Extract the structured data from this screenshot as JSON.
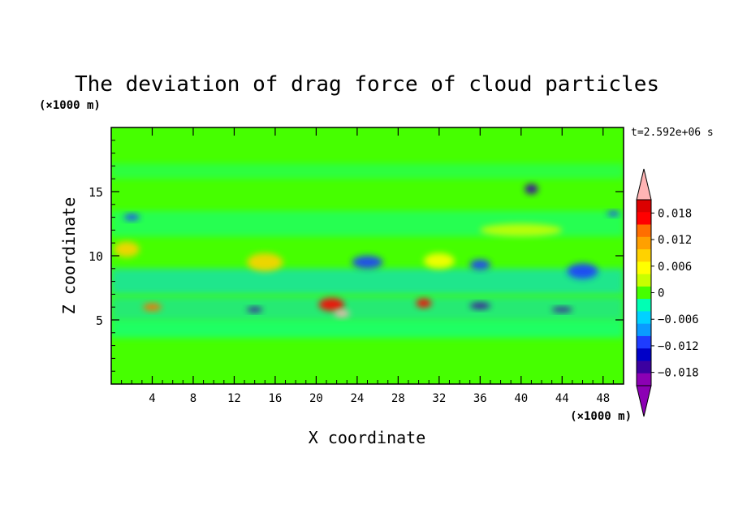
{
  "chart_data": {
    "type": "heatmap",
    "title": "The deviation of drag force of cloud particles",
    "xlabel": "X coordinate",
    "ylabel": "Z coordinate",
    "x_unit": "(×1000 m)",
    "y_unit": "(×1000 m)",
    "time_label": "t=2.592e+06 s",
    "xlim": [
      0,
      50
    ],
    "ylim": [
      0,
      20
    ],
    "x_ticks": [
      4,
      8,
      12,
      16,
      20,
      24,
      28,
      32,
      36,
      40,
      44,
      48
    ],
    "y_ticks": [
      5,
      10,
      15
    ],
    "colorbar": {
      "range": [
        -0.021,
        0.021
      ],
      "tick_values": [
        0.018,
        0.012,
        0.006,
        0,
        -0.006,
        -0.012,
        -0.018
      ],
      "tick_labels": [
        "0.018",
        "0.012",
        "0.006",
        "0",
        "−0.006",
        "−0.012",
        "−0.018"
      ],
      "colors": [
        "#8c00b4",
        "#3c00a0",
        "#0000c8",
        "#1e3cff",
        "#0a9bff",
        "#00d2ff",
        "#00ffb4",
        "#46ff00",
        "#c8ff00",
        "#ffff00",
        "#ffd200",
        "#ffa000",
        "#ff6e00",
        "#ff0000",
        "#dc0000"
      ],
      "over_color": "#ffb4b4",
      "under_color": "#8c00b4"
    },
    "field": {
      "background_value": 0,
      "note": "approximate features read from the image",
      "features": [
        {
          "x": 1.5,
          "z": 10.5,
          "w": 2.5,
          "h": 1.2,
          "value": 0.007
        },
        {
          "x": 15,
          "z": 9.5,
          "w": 3.5,
          "h": 1.4,
          "value": 0.007
        },
        {
          "x": 32,
          "z": 9.6,
          "w": 3,
          "h": 1.2,
          "value": 0.006
        },
        {
          "x": 40,
          "z": 12.0,
          "w": 8,
          "h": 1.0,
          "value": 0.002
        },
        {
          "x": 25,
          "z": 9.5,
          "w": 3,
          "h": 1.0,
          "value": -0.01
        },
        {
          "x": 36,
          "z": 9.3,
          "w": 2,
          "h": 0.8,
          "value": -0.01
        },
        {
          "x": 46,
          "z": 8.8,
          "w": 3,
          "h": 1.2,
          "value": -0.012
        },
        {
          "x": 41,
          "z": 15.2,
          "w": 1.3,
          "h": 0.8,
          "value": -0.018
        },
        {
          "x": 2,
          "z": 13.0,
          "w": 1.5,
          "h": 0.5,
          "value": -0.01
        },
        {
          "x": 49,
          "z": 13.3,
          "w": 1.2,
          "h": 0.4,
          "value": -0.01
        },
        {
          "x": 21.5,
          "z": 6.2,
          "w": 2.5,
          "h": 1.0,
          "value": 0.016
        },
        {
          "x": 22.5,
          "z": 5.5,
          "w": 1.5,
          "h": 0.6,
          "value": 0.022
        },
        {
          "x": 30.5,
          "z": 6.3,
          "w": 1.5,
          "h": 0.7,
          "value": 0.016
        },
        {
          "x": 4,
          "z": 6.0,
          "w": 1.8,
          "h": 0.6,
          "value": 0.014
        },
        {
          "x": 14,
          "z": 5.8,
          "w": 1.5,
          "h": 0.4,
          "value": -0.018
        },
        {
          "x": 36,
          "z": 6.1,
          "w": 2,
          "h": 0.5,
          "value": -0.018
        },
        {
          "x": 44,
          "z": 5.8,
          "w": 2,
          "h": 0.4,
          "value": -0.018
        }
      ]
    }
  }
}
